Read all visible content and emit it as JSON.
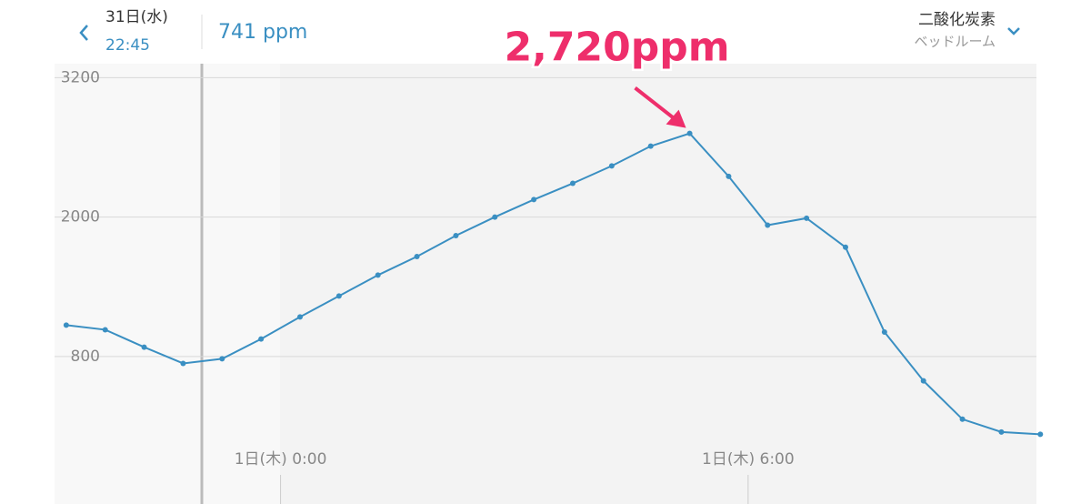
{
  "header": {
    "date": "31日(水)",
    "time": "22:45",
    "reading": "741 ppm",
    "metric": "二酸化炭素",
    "room": "ベッドルーム"
  },
  "chart_data": {
    "type": "line",
    "annotation": "2,720ppm",
    "x": [
      -2.75,
      -2.25,
      -1.75,
      -1.25,
      -0.75,
      -0.25,
      0.25,
      0.75,
      1.25,
      1.75,
      2.25,
      2.75,
      3.25,
      3.75,
      4.25,
      4.75,
      5.25,
      5.75,
      6.25,
      6.75,
      7.25,
      7.75,
      8.25,
      8.75,
      9.25,
      9.75
    ],
    "series": [
      {
        "name": "二酸化炭素",
        "color": "#3a8fc2",
        "values": [
          1070,
          1030,
          880,
          740,
          780,
          950,
          1140,
          1320,
          1500,
          1660,
          1840,
          2000,
          2150,
          2290,
          2440,
          2610,
          2720,
          2350,
          1930,
          1990,
          1740,
          1010,
          590,
          260,
          150,
          130
        ]
      }
    ],
    "xlim": [
      -2.9,
      9.7
    ],
    "xticks": [
      {
        "value": 0,
        "label": "1日(木) 0:00"
      },
      {
        "value": 6,
        "label": "1日(木) 6:00"
      }
    ],
    "ylim": [
      -470,
      3320
    ],
    "yticks": [
      800,
      2000,
      3200
    ],
    "grid": true
  }
}
